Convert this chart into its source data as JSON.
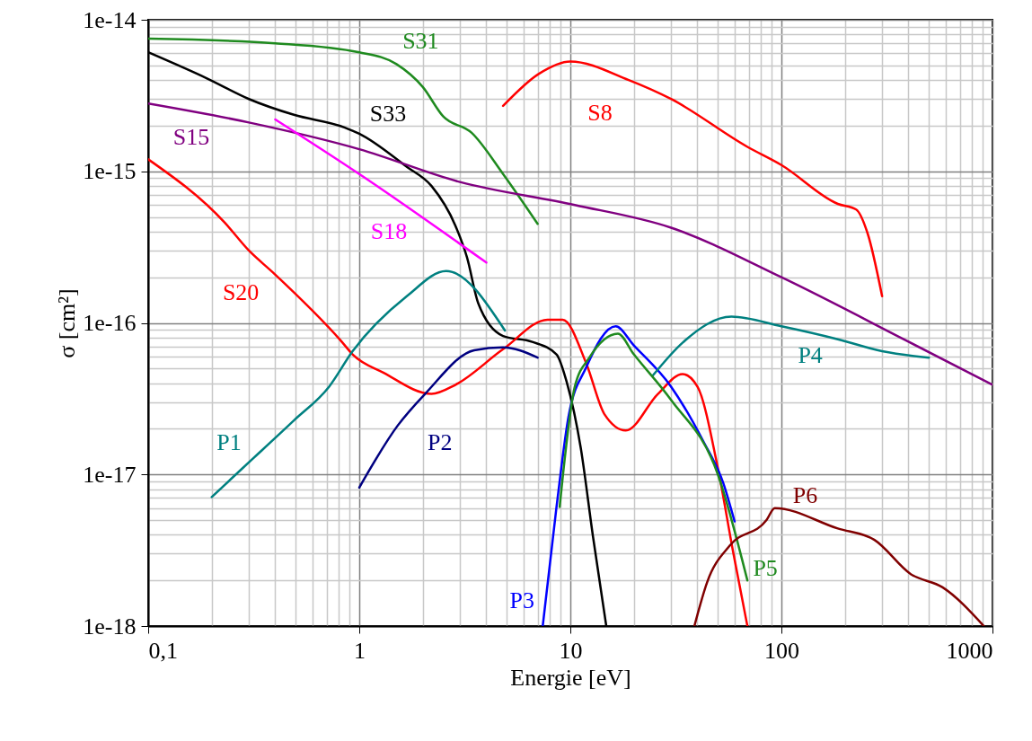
{
  "chart_data": {
    "type": "line",
    "xlabel": "Energie [eV]",
    "ylabel": "σ [cm²]",
    "log": "xy",
    "grid": true,
    "xlim": [
      0.1,
      1000
    ],
    "ylim": [
      1e-18,
      1e-14
    ],
    "xticks": [
      {
        "value": 0.1,
        "label": "0,1"
      },
      1,
      10,
      100,
      1000
    ],
    "yticks": [
      {
        "value": 1e-18,
        "label": "1e-18"
      },
      {
        "value": 1e-17,
        "label": "1e-17"
      },
      {
        "value": 1e-16,
        "label": "1e-16"
      },
      {
        "value": 1e-15,
        "label": "1e-15"
      },
      {
        "value": 1e-14,
        "label": "1e-14"
      }
    ],
    "series": [
      {
        "name": "S31",
        "color": "#1f8a1f",
        "x": [
          0.1,
          0.4,
          1,
          1.5,
          2,
          2.5,
          3.4,
          4.8,
          7
        ],
        "values": [
          7.5e-15,
          7e-15,
          6.1e-15,
          5.1e-15,
          3.6e-15,
          2.3e-15,
          1.8e-15,
          9.6e-16,
          4.5e-16
        ]
      },
      {
        "name": "S33",
        "color": "#000000",
        "x": [
          0.1,
          0.19,
          0.3,
          0.49,
          0.85,
          1,
          1.68,
          2.2,
          2.85,
          3.24,
          3.66,
          4.8,
          6.6,
          8.6,
          9.6,
          11.2,
          12.8,
          14.8
        ],
        "values": [
          6.1e-15,
          4.1e-15,
          3e-15,
          2.36e-15,
          1.95e-15,
          1.77e-15,
          1.07e-15,
          8e-16,
          4.4e-16,
          2.7e-16,
          1.35e-16,
          8.2e-17,
          7.5e-17,
          6.2e-17,
          4.1e-17,
          1.5e-17,
          3.9e-18,
          1e-18
        ]
      },
      {
        "name": "S15",
        "color": "#800080",
        "x": [
          0.1,
          0.3,
          1,
          3,
          10.5,
          30,
          100,
          394,
          1000
        ],
        "values": [
          2.8e-15,
          2.1e-15,
          1.4e-15,
          8.5e-16,
          6e-16,
          4.25e-16,
          2e-16,
          7.6e-17,
          3.9e-17
        ]
      },
      {
        "name": "S18",
        "color": "#ff00ff",
        "x": [
          0.4,
          1,
          4
        ],
        "values": [
          2.2e-15,
          9.6e-16,
          2.5e-16
        ]
      },
      {
        "name": "S20",
        "color": "#ff0000",
        "x": [
          0.1,
          0.23,
          0.3,
          0.39,
          0.82,
          0.93,
          1.3,
          2.2,
          2.85,
          4.8,
          7.8,
          9.2,
          11.9,
          14.5,
          18.3,
          26,
          34,
          40,
          50,
          59,
          69
        ],
        "values": [
          1.2e-15,
          4.6e-16,
          3e-16,
          2.15e-16,
          7.6e-17,
          6.2e-17,
          4.7e-17,
          3.4e-17,
          3.9e-17,
          6.7e-17,
          1.05e-16,
          1.05e-16,
          5.4e-17,
          2.5e-17,
          1.95e-17,
          3.4e-17,
          4.6e-17,
          3.8e-17,
          1.1e-17,
          3.1e-18,
          1e-18
        ]
      },
      {
        "name": "S8",
        "color": "#ff0000",
        "x": [
          4.8,
          7.1,
          10,
          18.9,
          30,
          69,
          100,
          185,
          226,
          256,
          300
        ],
        "values": [
          2.7e-15,
          4.4e-15,
          5.3e-15,
          4e-15,
          3e-15,
          1.45e-15,
          1.1e-15,
          6.1e-16,
          5.6e-16,
          3.9e-16,
          1.5e-16
        ]
      },
      {
        "name": "P1",
        "color": "#008080",
        "x": [
          0.2,
          0.28,
          0.49,
          0.72,
          0.93,
          1.68,
          2.58,
          4.9
        ],
        "values": [
          7.1e-18,
          1.1e-17,
          2.27e-17,
          3.8e-17,
          6.5e-17,
          1.5e-16,
          2.2e-16,
          8.9e-17
        ]
      },
      {
        "name": "P2",
        "color": "#000080",
        "x": [
          1,
          1.52,
          2.05,
          3.5,
          4.8,
          7
        ],
        "values": [
          8.2e-18,
          2.1e-17,
          3.4e-17,
          6.6e-17,
          6.9e-17,
          5.9e-17
        ]
      },
      {
        "name": "P3",
        "color": "#0000ff",
        "x": [
          7.4,
          8.6,
          9.8,
          11.9,
          16.4,
          20,
          30,
          42.7,
          53,
          60
        ],
        "values": [
          1e-18,
          6.1e-18,
          2.4e-17,
          5.1e-17,
          9.5e-17,
          7.1e-17,
          3.8e-17,
          1.65e-17,
          8.8e-18,
          4.9e-18
        ]
      },
      {
        "name": "P4",
        "color": "#008080",
        "x": [
          24.6,
          34,
          58,
          100,
          185,
          300,
          500
        ],
        "values": [
          4.5e-17,
          7.4e-17,
          1.1e-16,
          9.5e-17,
          7.8e-17,
          6.5e-17,
          5.9e-17
        ]
      },
      {
        "name": "P5",
        "color": "#1f8a1f",
        "x": [
          8.9,
          10.5,
          12.3,
          16.8,
          20,
          30,
          50,
          69
        ],
        "values": [
          6.1e-18,
          3.8e-17,
          5.9e-17,
          8.5e-17,
          6.2e-17,
          3.1e-17,
          1e-17,
          2e-18
        ]
      },
      {
        "name": "P6",
        "color": "#800000",
        "x": [
          38.7,
          44.5,
          57,
          85,
          93,
          185,
          276,
          410,
          580,
          910
        ],
        "values": [
          1e-18,
          1.95e-18,
          3.4e-18,
          5e-18,
          6e-18,
          4.4e-18,
          3.7e-18,
          2.2e-18,
          1.8e-18,
          1e-18
        ]
      }
    ]
  }
}
